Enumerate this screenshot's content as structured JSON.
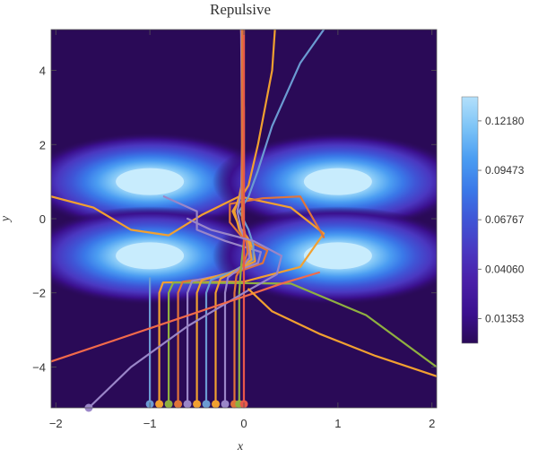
{
  "chart_data": {
    "type": "heatmap",
    "title": "Repulsive",
    "xlabel": "x",
    "ylabel": "y",
    "xlim": [
      -2.05,
      2.05
    ],
    "ylim": [
      -5.1,
      5.1
    ],
    "x_ticks": [
      -2,
      -1,
      0,
      1,
      2
    ],
    "y_ticks": [
      -4,
      -2,
      0,
      2,
      4
    ],
    "grid": false,
    "background_color": "#2a0a57",
    "density_blobs": [
      {
        "cx": -1,
        "cy": 1,
        "peak": 0.13
      },
      {
        "cx": 1,
        "cy": 1,
        "peak": 0.13
      },
      {
        "cx": -1,
        "cy": -1,
        "peak": 0.13
      },
      {
        "cx": 1,
        "cy": -1,
        "peak": 0.13
      }
    ],
    "colorbar": {
      "ticks": [
        "0.12180",
        "0.09473",
        "0.06767",
        "0.04060",
        "0.01353"
      ],
      "tick_values": [
        0.1218,
        0.09473,
        0.06767,
        0.0406,
        0.01353
      ],
      "range": [
        0.0,
        0.135
      ],
      "colors": [
        "#2a0a57",
        "#3b108e",
        "#4a1fa8",
        "#4a37c0",
        "#3f55d6",
        "#3a78e8",
        "#4b9df2",
        "#7ac2f6",
        "#b3e0fb"
      ]
    },
    "series": [
      {
        "color": "#6b9bd2",
        "start_x": -1.0,
        "points": [
          [
            -1.0,
            -5.0
          ],
          [
            -1.0,
            -1.6
          ]
        ]
      },
      {
        "color": "#f2a030",
        "start_x": -0.9,
        "points": [
          [
            -0.9,
            -5.0
          ],
          [
            -0.9,
            -2.0
          ],
          [
            -0.86,
            -1.72
          ],
          [
            0.0,
            -1.7
          ],
          [
            0.6,
            -1.3
          ],
          [
            0.85,
            -0.4
          ],
          [
            0.5,
            0.3
          ],
          [
            -0.05,
            0.6
          ],
          [
            -0.45,
            0.1
          ],
          [
            -0.8,
            -0.45
          ],
          [
            -1.2,
            -0.3
          ],
          [
            -1.6,
            0.3
          ],
          [
            -2.05,
            0.6
          ]
        ]
      },
      {
        "color": "#8fb040",
        "start_x": -0.8,
        "points": [
          [
            -0.8,
            -5.0
          ],
          [
            -0.8,
            -2.0
          ],
          [
            -0.75,
            -1.72
          ],
          [
            0.5,
            -1.75
          ],
          [
            1.3,
            -2.6
          ],
          [
            2.05,
            -4.0
          ]
        ]
      },
      {
        "color": "#e0743a",
        "start_x": -0.7,
        "points": [
          [
            -0.7,
            -5.0
          ],
          [
            -0.7,
            -2.0
          ],
          [
            -0.65,
            -1.7
          ],
          [
            -0.2,
            -1.55
          ],
          [
            0.2,
            -1.2
          ],
          [
            0.25,
            -0.85
          ],
          [
            0.0,
            -0.55
          ],
          [
            -0.15,
            -0.1
          ],
          [
            -0.15,
            0.4
          ],
          [
            0.2,
            0.55
          ],
          [
            0.6,
            0.6
          ],
          [
            0.85,
            -0.5
          ]
        ]
      },
      {
        "color": "#9a86c8",
        "start_x": -0.6,
        "points": [
          [
            -0.6,
            -5.0
          ],
          [
            -0.6,
            -2.0
          ],
          [
            -0.55,
            -1.68
          ],
          [
            -0.2,
            -1.5
          ],
          [
            0.15,
            -1.2
          ],
          [
            0.18,
            -0.9
          ],
          [
            -0.2,
            -0.6
          ],
          [
            -0.5,
            -0.3
          ],
          [
            -0.5,
            0.2
          ],
          [
            -0.85,
            0.6
          ]
        ]
      },
      {
        "color": "#f0a030",
        "start_x": -0.5,
        "points": [
          [
            -0.5,
            -5.0
          ],
          [
            -0.5,
            -2.0
          ],
          [
            -0.45,
            -1.66
          ],
          [
            -0.15,
            -1.45
          ],
          [
            0.12,
            -1.15
          ],
          [
            0.1,
            -0.85
          ],
          [
            0.05,
            -0.55
          ],
          [
            -0.05,
            -0.2
          ],
          [
            -0.12,
            0.2
          ],
          [
            -0.05,
            0.5
          ],
          [
            0.05,
            0.9
          ],
          [
            0.15,
            2.0
          ],
          [
            0.3,
            4.0
          ],
          [
            0.33,
            5.1
          ]
        ]
      },
      {
        "color": "#6b9bd2",
        "start_x": -0.4,
        "points": [
          [
            -0.4,
            -5.0
          ],
          [
            -0.4,
            -2.0
          ],
          [
            -0.35,
            -1.65
          ],
          [
            -0.1,
            -1.4
          ],
          [
            0.1,
            -1.1
          ],
          [
            0.1,
            -0.7
          ],
          [
            0.05,
            -0.3
          ],
          [
            -0.05,
            0.2
          ],
          [
            0.05,
            0.6
          ],
          [
            0.15,
            1.3
          ],
          [
            0.3,
            2.5
          ],
          [
            0.6,
            4.2
          ],
          [
            0.85,
            5.1
          ]
        ]
      },
      {
        "color": "#f0a030",
        "start_x": -0.3,
        "points": [
          [
            -0.3,
            -5.0
          ],
          [
            -0.3,
            -2.0
          ],
          [
            -0.25,
            -1.62
          ],
          [
            -0.05,
            -1.35
          ],
          [
            0.08,
            -1.1
          ],
          [
            0.06,
            -0.7
          ],
          [
            -0.05,
            -0.3
          ],
          [
            -0.1,
            0.2
          ],
          [
            -0.05,
            0.6
          ],
          [
            0.0,
            1.2
          ],
          [
            0.0,
            3.0
          ],
          [
            -0.03,
            5.1
          ]
        ]
      },
      {
        "color": "#9a86c8",
        "start_x": -0.2,
        "points": [
          [
            -0.2,
            -5.0
          ],
          [
            -0.2,
            -2.0
          ],
          [
            -0.17,
            -1.58
          ],
          [
            -0.02,
            -1.3
          ],
          [
            0.06,
            -1.05
          ],
          [
            0.04,
            -0.7
          ],
          [
            -0.03,
            -0.3
          ],
          [
            -0.07,
            0.2
          ],
          [
            -0.03,
            0.7
          ],
          [
            -0.02,
            2.0
          ],
          [
            -0.03,
            5.1
          ]
        ]
      },
      {
        "color": "#e0743a",
        "start_x": -0.1,
        "points": [
          [
            -0.1,
            -5.0
          ],
          [
            -0.1,
            -2.0
          ],
          [
            -0.08,
            -1.55
          ],
          [
            0.0,
            -1.2
          ],
          [
            0.04,
            -0.9
          ],
          [
            0.02,
            -0.5
          ],
          [
            -0.02,
            0.0
          ],
          [
            -0.02,
            0.8
          ],
          [
            -0.02,
            5.1
          ]
        ]
      },
      {
        "color": "#8fb040",
        "start_x": -0.05,
        "points": [
          [
            -0.05,
            -5.0
          ],
          [
            -0.05,
            -2.0
          ],
          [
            -0.03,
            -1.3
          ],
          [
            0.0,
            -0.6
          ],
          [
            0.0,
            0.5
          ],
          [
            0.0,
            5.1
          ]
        ]
      },
      {
        "color": "#e8584a",
        "start_x": 0.0,
        "points": [
          [
            0.0,
            -5.0
          ],
          [
            0.0,
            5.1
          ]
        ]
      },
      {
        "color": "#9a86c8",
        "start_x": -1.6,
        "points": [
          [
            -1.65,
            -5.1
          ],
          [
            -1.2,
            -4.0
          ],
          [
            -0.6,
            -2.9
          ],
          [
            0.0,
            -2.0
          ],
          [
            0.35,
            -1.5
          ],
          [
            0.4,
            -1.0
          ],
          [
            0.1,
            -0.6
          ],
          [
            -0.35,
            -0.3
          ],
          [
            -0.6,
            0.0
          ]
        ]
      },
      {
        "color": "#f26a4a",
        "start_x": -2.0,
        "points": [
          [
            -2.05,
            -3.85
          ],
          [
            -1.4,
            -3.3
          ],
          [
            -0.7,
            -2.7
          ],
          [
            0.0,
            -2.1
          ],
          [
            0.4,
            -1.75
          ],
          [
            0.8,
            -1.45
          ]
        ]
      },
      {
        "color": "#f2a030",
        "start_x": 2.0,
        "points": [
          [
            2.05,
            -4.25
          ],
          [
            1.4,
            -3.7
          ],
          [
            0.8,
            -3.1
          ],
          [
            0.3,
            -2.5
          ],
          [
            0.05,
            -1.9
          ]
        ]
      }
    ]
  }
}
